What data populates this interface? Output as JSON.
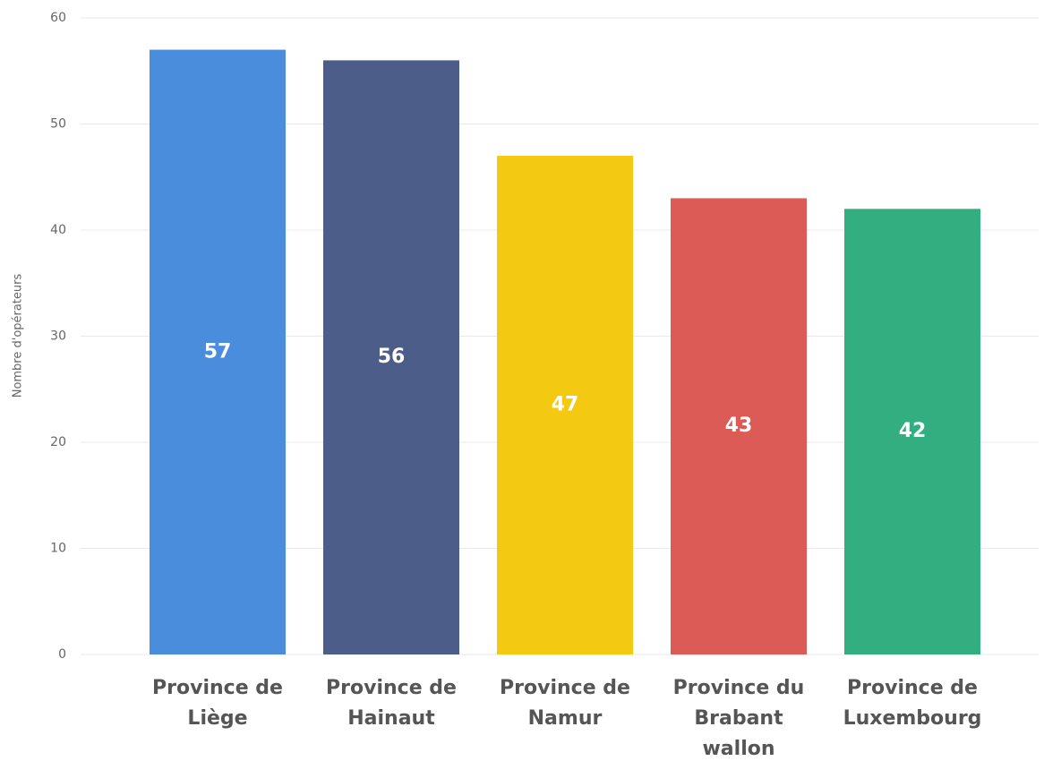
{
  "chart_data": {
    "type": "bar",
    "y_label": "Nombre d'opérateurs",
    "categories": [
      "Province de Liège",
      "Province de Hainaut",
      "Province de Namur",
      "Province du Brabant wallon",
      "Province de Luxembourg"
    ],
    "values": [
      57,
      56,
      47,
      43,
      42
    ],
    "colors": [
      "#4a8ddc",
      "#4c5d8a",
      "#f3c911",
      "#dc5b57",
      "#33ae81"
    ],
    "ylim": [
      0,
      60
    ],
    "yticks": [
      0,
      10,
      20,
      30,
      40,
      50,
      60
    ],
    "grid": true
  }
}
